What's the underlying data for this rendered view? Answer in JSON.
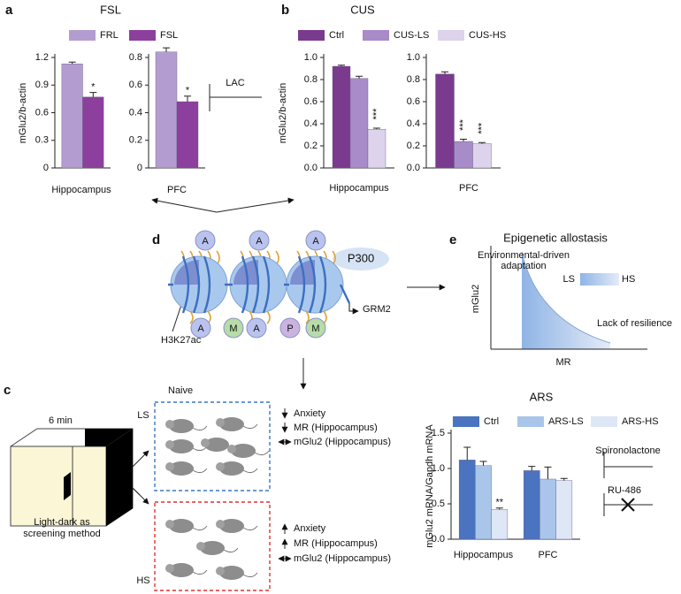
{
  "panel_labels": [
    "a",
    "b",
    "c",
    "d",
    "e"
  ],
  "lac": "LAC",
  "chart_data": [
    {
      "type": "bar",
      "title": "FSL",
      "ylabel": "mGlu2/b-actin",
      "xlabel": "Hippocampus",
      "ylim": [
        0,
        1.2
      ],
      "yticks": [
        0,
        0.3,
        0.6,
        0.9,
        1.2
      ],
      "series": [
        {
          "name": "FRL",
          "color": "#b39dd0",
          "values": [
            1.13
          ],
          "errors": [
            0.02
          ]
        },
        {
          "name": "FSL",
          "color": "#8c3f9c",
          "values": [
            0.77
          ],
          "errors": [
            0.05
          ],
          "annotations": [
            "*"
          ]
        }
      ]
    },
    {
      "type": "bar",
      "xlabel": "PFC",
      "ylim": [
        0,
        0.8
      ],
      "yticks": [
        0,
        0.2,
        0.4,
        0.6,
        0.8
      ],
      "series": [
        {
          "color": "#b39dd0",
          "values": [
            0.84
          ],
          "errors": [
            0.03
          ]
        },
        {
          "color": "#8c3f9c",
          "values": [
            0.48
          ],
          "errors": [
            0.04
          ],
          "annotations": [
            "*"
          ]
        }
      ]
    },
    {
      "type": "bar",
      "title": "CUS",
      "ylabel": "mGlu2/b-actin",
      "xlabel": "Hippocampus",
      "ylim": [
        0,
        1.0
      ],
      "yticks": [
        {
          "value": 0,
          "label": "0.0"
        },
        0.2,
        0.4,
        0.6,
        0.8,
        {
          "value": 1,
          "label": "1.0"
        }
      ],
      "series": [
        {
          "name": "Ctrl",
          "color": "#7a3a8e",
          "values": [
            0.92
          ],
          "errors": [
            0.01
          ]
        },
        {
          "name": "CUS-LS",
          "color": "#a88bc9",
          "values": [
            0.81
          ],
          "errors": [
            0.02
          ]
        },
        {
          "name": "CUS-HS",
          "color": "#ddd3ec",
          "values": [
            0.35
          ],
          "errors": [
            0.01
          ],
          "annotations": [
            "***"
          ]
        }
      ]
    },
    {
      "type": "bar",
      "xlabel": "PFC",
      "ylim": [
        0,
        1.0
      ],
      "yticks": [
        {
          "value": 0,
          "label": "0.0"
        },
        0.2,
        0.4,
        0.6,
        0.8,
        {
          "value": 1,
          "label": "1.0"
        }
      ],
      "series": [
        {
          "color": "#7a3a8e",
          "values": [
            0.85
          ],
          "errors": [
            0.02
          ]
        },
        {
          "color": "#a88bc9",
          "values": [
            0.24
          ],
          "errors": [
            0.02
          ],
          "annotations": [
            "***"
          ]
        },
        {
          "color": "#ddd3ec",
          "values": [
            0.22
          ],
          "errors": [
            0.01
          ],
          "annotations": [
            "***"
          ]
        }
      ]
    },
    {
      "type": "bar",
      "title": "ARS",
      "ylabel": "mGlu2 mRNA/Gapdh mRNA",
      "categories": [
        "Hippocampus",
        "PFC"
      ],
      "ylim": [
        0,
        1.5
      ],
      "yticks": [
        {
          "value": 0,
          "label": "0.0"
        },
        0.5,
        {
          "value": 1,
          "label": "1.0"
        },
        1.5
      ],
      "series": [
        {
          "name": "Ctrl",
          "color": "#4a73c0",
          "values": [
            1.12,
            0.97
          ],
          "errors": [
            0.18,
            0.06
          ]
        },
        {
          "name": "ARS-LS",
          "color": "#a9c6ea",
          "values": [
            1.04,
            0.85
          ],
          "errors": [
            0.06,
            0.17
          ]
        },
        {
          "name": "ARS-HS",
          "color": "#dde7f6",
          "values": [
            0.42,
            0.83
          ],
          "errors": [
            0.02,
            0.03
          ],
          "annotations": [
            "**",
            null
          ]
        }
      ]
    }
  ],
  "diagram_d": {
    "top_marks": [
      "A",
      "A",
      "A"
    ],
    "bottom_marks": [
      "A",
      "M",
      "A",
      "P",
      "M"
    ],
    "enzyme": "P300",
    "gene": "GRM2",
    "histone_mark": "H3K27ac"
  },
  "diagram_e": {
    "title": "Epigenetic allostasis",
    "adaptation_lines": [
      "Environmental-driven",
      "adaptation"
    ],
    "legend": [
      "LS",
      "HS"
    ],
    "resilience_label": "Lack of resilience",
    "ylabel": "mGlu2",
    "xlabel": "MR"
  },
  "panel_c": {
    "duration": "6 min",
    "method_lines": [
      "Light-dark as",
      "screening method"
    ],
    "group_title": "Naive",
    "groups": [
      {
        "label": "LS",
        "effects": [
          "Anxiety",
          "MR (Hippocampus)",
          "mGlu2 (Hippocampus)"
        ]
      },
      {
        "label": "HS",
        "effects": [
          "Anxiety",
          "MR (Hippocampus)",
          "mGlu2 (Hippocampus)"
        ]
      }
    ],
    "treatments": [
      "Spironolactone",
      "RU-486"
    ]
  }
}
